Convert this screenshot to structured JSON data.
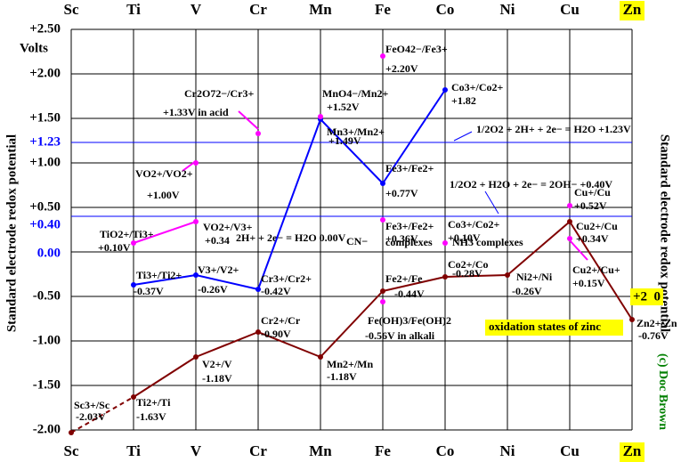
{
  "chart_data": {
    "type": "line",
    "y_label": "Volts",
    "y_axis_title": "Standard electrode redox potential",
    "credit": "(c) Doc Brown",
    "categories": [
      "Sc",
      "Ti",
      "V",
      "Cr",
      "Mn",
      "Fe",
      "Co",
      "Ni",
      "Cu",
      "Zn"
    ],
    "ylim": [
      -2,
      2.5
    ],
    "yticks": [
      {
        "value": 2.5,
        "label": "+2.50"
      },
      {
        "value": 2,
        "label": "+2.00"
      },
      {
        "value": 1.5,
        "label": "+1.50"
      },
      {
        "value": 1,
        "label": "+1.00"
      },
      {
        "value": 0.5,
        "label": "+0.50"
      },
      {
        "value": -0.5,
        "label": "-0.50"
      },
      {
        "value": -1,
        "label": "-1.00"
      },
      {
        "value": -1.5,
        "label": "-1.50"
      },
      {
        "value": -2,
        "label": "-2.00"
      }
    ],
    "grid": true,
    "reference_lines": [
      {
        "value": 1.23,
        "label": "+1.23",
        "note": "1/2O2 + 2H+ + 2e− = H2O  +1.23V",
        "color": "#0000ff"
      },
      {
        "value": 0.4,
        "label": "+0.40",
        "note": "1/2O2 + H2O + 2e− = 2OH−  +0.40V",
        "color": "#0000ff"
      },
      {
        "value": 0,
        "label": "0.00",
        "note": "2H+ + 2e− = H2O  0.00V",
        "color": "#000000"
      }
    ],
    "series": [
      {
        "color": "#800000",
        "connect": true,
        "dashed_segments": [
          0
        ],
        "values": [
          -2.03,
          -1.63,
          -1.18,
          -0.9,
          -1.18,
          -0.44,
          -0.28,
          -0.26,
          0.34,
          -0.76
        ],
        "value_labels": [
          "-2.03V",
          "-1.63V",
          "-1.18V",
          "-0.90V",
          "-1.18V",
          "-0.44V",
          "-0.28V",
          "-0.26V",
          "+0.34V",
          "-0.76V"
        ],
        "point_labels": [
          "Sc3+/Sc",
          "Ti2+/Ti",
          "V2+/V",
          "Cr2+/Cr",
          "Mn2+/Mn",
          "Fe2+/Fe",
          "Co2+/Co",
          "Ni2+/Ni",
          "Cu2+/Cu",
          "Zn2+/Zn"
        ]
      },
      {
        "color": "#0000ff",
        "connect": true,
        "values": [
          null,
          -0.37,
          -0.26,
          -0.42,
          1.49,
          0.77,
          1.82,
          null,
          null,
          null
        ],
        "value_labels": [
          null,
          "-0.37V",
          "-0.26V",
          "-0.42V",
          "+1.49V",
          "+0.77V",
          "+1.82",
          null,
          null,
          null
        ],
        "point_labels": [
          null,
          "Ti3+/Ti2+",
          "V3+/V2+",
          "Cr3+/Cr2+",
          "Mn3+/Mn2+",
          "Fe3+/Fe2+",
          "Co3+/Co2+",
          null,
          null,
          null
        ]
      },
      {
        "color": "#ff00ff",
        "connect": true,
        "values": [
          null,
          0.1,
          0.34,
          null,
          null,
          null,
          null,
          null,
          null,
          null
        ],
        "value_labels": [
          null,
          "+0.10V",
          "+0.34",
          null,
          null,
          null,
          null,
          null,
          null,
          null
        ],
        "point_labels": [
          null,
          "TiO2+/Ti3+",
          "VO2+/V3+",
          null,
          null,
          null,
          null,
          null,
          null,
          null
        ]
      },
      {
        "color": "#ff00ff",
        "connect": false,
        "values": [
          null,
          null,
          1.0,
          1.33,
          1.52,
          2.2,
          0.1,
          null,
          0.52,
          null
        ],
        "value_labels": [
          null,
          null,
          "+1.00V",
          "+1.33V in acid",
          "+1.52V",
          "+2.20V",
          "+0.10V",
          null,
          "+0.52V",
          null
        ],
        "point_labels": [
          null,
          null,
          "VO2+/VO2+",
          "Cr2O72−/Cr3+",
          "MnO4−/Mn2+",
          "FeO42−/Fe3+",
          "Co3+/Co2+",
          null,
          "Cu+/Cu",
          null
        ]
      },
      {
        "color": "#ff00ff",
        "connect": false,
        "values": [
          null,
          null,
          null,
          null,
          null,
          0.36,
          null,
          null,
          0.15,
          null
        ],
        "value_labels": [
          null,
          null,
          null,
          null,
          null,
          "+0.36V",
          null,
          null,
          "+0.15V",
          null
        ],
        "point_labels": [
          null,
          null,
          null,
          null,
          null,
          "Fe3+/Fe2+",
          null,
          null,
          "Cu2+/Cu+",
          null
        ]
      },
      {
        "color": "#ff00ff",
        "connect": false,
        "values": [
          null,
          null,
          null,
          null,
          null,
          -0.56,
          null,
          null,
          null,
          null
        ],
        "value_labels": [
          null,
          null,
          null,
          null,
          null,
          "-0.56V in alkali",
          null,
          null,
          null,
          null
        ],
        "point_labels": [
          null,
          null,
          null,
          null,
          null,
          "Fe(OH)3/Fe(OH)2",
          null,
          null,
          null,
          null
        ]
      }
    ],
    "annotations": [
      "CN−",
      "complexes",
      "NH3 complexes",
      "+2  0",
      "oxidation states of zinc"
    ]
  }
}
